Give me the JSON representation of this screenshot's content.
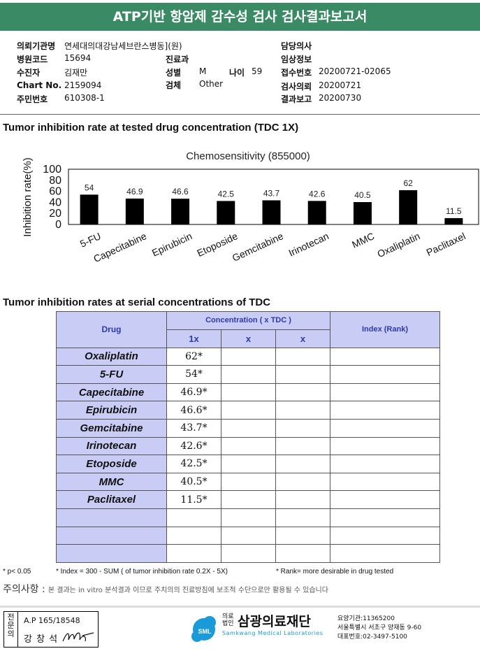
{
  "header": {
    "title": "ATP기반 항암제 감수성 검사 검사결과보고서"
  },
  "info": {
    "institution_label": "의뢰기관명",
    "institution": "연세대의대강남세브란스병동](원)",
    "hospital_code_label": "병원코드",
    "hospital_code": "15694",
    "department_label": "진료과",
    "department": "",
    "doctor_label": "담당의사",
    "doctor": "",
    "patient_label": "수진자",
    "patient": "김재만",
    "sex_label": "성별",
    "sex": "M",
    "age_label": "나이",
    "age": "59",
    "accession_label": "접수번호",
    "accession": "20200721-02065",
    "clinical_label": "임상정보",
    "clinical": "",
    "chart_label": "Chart No.",
    "chart": "2159094",
    "specimen_label": "검체",
    "specimen": "Other",
    "requested_label": "검사의뢰",
    "requested": "20200721",
    "resident_label": "주민번호",
    "resident": "610308-1",
    "reported_label": "결과보고",
    "reported": "20200730"
  },
  "section1": {
    "title": "Tumor inhibition rate at tested drug concentration (TDC 1X)"
  },
  "chart_data": {
    "type": "bar",
    "title": "Chemosensitivity (855000)",
    "ylabel": "Inhibition rate(%)",
    "xlabel": "",
    "ylim": [
      0,
      100
    ],
    "yticks": [
      "0",
      "20",
      "40",
      "60",
      "80",
      "100"
    ],
    "categories": [
      "5-FU",
      "Capecitabine",
      "Epirubicin",
      "Etoposide",
      "Gemcitabine",
      "Irinotecan",
      "MMC",
      "Oxaliplatin",
      "Paclitaxel"
    ],
    "values": [
      54,
      46.9,
      46.6,
      42.5,
      43.7,
      42.6,
      40.5,
      62,
      11.5
    ],
    "value_labels": [
      "54",
      "46.9",
      "46.6",
      "42.5",
      "43.7",
      "42.6",
      "40.5",
      "62",
      "11.5"
    ],
    "bar_color": "#000000",
    "grid": false
  },
  "section2": {
    "title": "Tumor inhibition rates at serial concentrations of TDC"
  },
  "table": {
    "drug_header": "Drug",
    "conc_header": "Concentration ( x TDC )",
    "index_header": "Index (Rank)",
    "conc_cols": [
      "1x",
      "x",
      "x"
    ],
    "rows": [
      {
        "drug": "Oxaliplatin",
        "v1": "62*"
      },
      {
        "drug": "5-FU",
        "v1": "54*"
      },
      {
        "drug": "Capecitabine",
        "v1": "46.9*"
      },
      {
        "drug": "Epirubicin",
        "v1": "46.6*"
      },
      {
        "drug": "Gemcitabine",
        "v1": "43.7*"
      },
      {
        "drug": "Irinotecan",
        "v1": "42.6*"
      },
      {
        "drug": "Etoposide",
        "v1": "42.5*"
      },
      {
        "drug": "MMC",
        "v1": "40.5*"
      },
      {
        "drug": "Paclitaxel",
        "v1": "11.5*"
      }
    ],
    "empty_rows": 3
  },
  "footnotes": {
    "p": "* p< 0.05",
    "index": "* Index = 300 - SUM ( of tumor inhibition rate 0.2X  -  5X)",
    "rank": "* Rank= more desirable in drug tested"
  },
  "notice": {
    "label": "주의사항 :",
    "text": "본 결과는 in vitro 분석결과 이므로 주치의의 진료방침에 보조적 수단으로만 활용될 수 있습니다"
  },
  "signature": {
    "side": "전문의",
    "id": "A.P 165/18548",
    "name": "강 창 석"
  },
  "lab": {
    "emblem": "SML",
    "type_line1": "의료",
    "type_line2": "법인",
    "name": "삼광의료재단",
    "name_en": "Samkwang Medical Laboratories",
    "code": "요양기관:11365200",
    "address": "서울특별시 서초구 양재동 9-60",
    "phone": "대표번호:02-3497-5100",
    "brand_color": "#1a9ad6"
  }
}
